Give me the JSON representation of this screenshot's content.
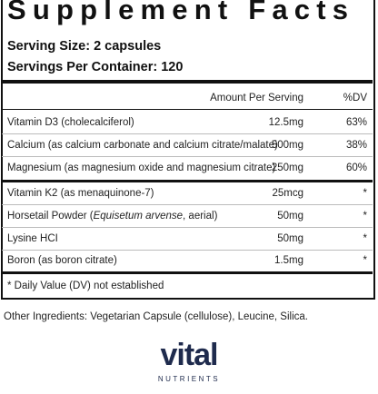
{
  "header": {
    "title": "Supplement Facts",
    "serving_size": "Serving Size: 2 capsules",
    "servings_per_container": "Servings Per Container: 120"
  },
  "table": {
    "col_amount": "Amount Per Serving",
    "col_dv": "%DV",
    "rows": [
      {
        "name": "Vitamin D3 (cholecalciferol)",
        "amount": "12.5mg",
        "dv": "63%"
      },
      {
        "name": "Calcium (as calcium carbonate and calcium citrate/malate)",
        "amount": "500mg",
        "dv": "38%"
      },
      {
        "name": "Magnesium (as magnesium oxide and magnesium citrate)",
        "amount": "250mg",
        "dv": "60%"
      },
      {
        "name": "Vitamin K2 (as menaquinone-7)",
        "amount": "25mcg",
        "dv": "*"
      },
      {
        "name": "Horsetail Powder (",
        "name_italic": "Equisetum arvense",
        "name_end": ", aerial)",
        "amount": "50mg",
        "dv": "*"
      },
      {
        "name": "Lysine HCI",
        "amount": "50mg",
        "dv": "*"
      },
      {
        "name": "Boron (as boron citrate)",
        "amount": "1.5mg",
        "dv": "*"
      }
    ],
    "footnote": "* Daily Value (DV) not established"
  },
  "other_ingredients": "Other Ingredients: Vegetarian Capsule (cellulose), Leucine, Silica.",
  "logo": {
    "name": "vital",
    "tagline": "NUTRIENTS"
  }
}
